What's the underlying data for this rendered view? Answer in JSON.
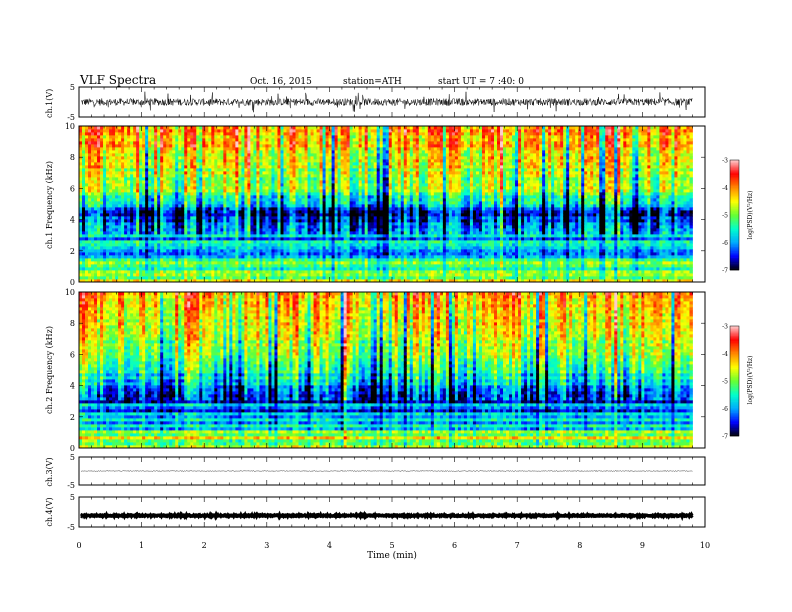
{
  "header": {
    "title": "VLF Spectra",
    "date": "Oct. 16, 2015",
    "station": "station=ATH",
    "start": "start UT = 7 :40: 0"
  },
  "panels": {
    "ch1_label": "ch.1(V)",
    "spec1_label": "ch.1 Frequency (kHz)",
    "spec2_label": "ch.2 Frequency (kHz)",
    "ch3_label": "ch.3(V)",
    "ch4_label": "ch.4(V)"
  },
  "colorbar": {
    "label": "log(PSD)(V²/Hz)",
    "ticks": [
      "-3",
      "-4",
      "-5",
      "-6",
      "-7"
    ],
    "range": [
      -7,
      -3
    ],
    "colors": [
      "#000000",
      "#0000ff",
      "#00aaff",
      "#00ffcc",
      "#66ff33",
      "#ffff00",
      "#ff8800",
      "#ff0000",
      "#ffcccc"
    ]
  },
  "chart_data": [
    {
      "type": "line",
      "panel": "ch.1 waveform",
      "ylabel": "ch.1(V)",
      "ylim": [
        -5,
        5
      ],
      "yticks": [
        "5",
        "-5"
      ],
      "xlim": [
        0,
        10
      ],
      "x_end": 9.8,
      "baseline": 0,
      "noise_amplitude": 1.2,
      "spike_amplitude": 3.5
    },
    {
      "type": "heatmap",
      "panel": "ch.1 spectrogram",
      "xlabel": "Time (min)",
      "ylabel": "Frequency (kHz)",
      "xlim": [
        0,
        10
      ],
      "x_end": 9.8,
      "ylim": [
        0,
        10
      ],
      "yticks": [
        "0",
        "2",
        "4",
        "6",
        "8",
        "10"
      ],
      "zlim": [
        -7,
        -3
      ],
      "z_profile": [
        {
          "f": 0.0,
          "z": -5.0
        },
        {
          "f": 0.5,
          "z": -4.5
        },
        {
          "f": 1.0,
          "z": -5.2
        },
        {
          "f": 1.5,
          "z": -6.1
        },
        {
          "f": 2.0,
          "z": -6.3
        },
        {
          "f": 2.5,
          "z": -6.0
        },
        {
          "f": 3.0,
          "z": -5.8
        },
        {
          "f": 3.5,
          "z": -6.0
        },
        {
          "f": 4.0,
          "z": -6.5
        },
        {
          "f": 4.5,
          "z": -6.6
        },
        {
          "f": 5.0,
          "z": -5.8
        },
        {
          "f": 6.0,
          "z": -5.0
        },
        {
          "f": 7.0,
          "z": -4.8
        },
        {
          "f": 8.0,
          "z": -4.5
        },
        {
          "f": 9.0,
          "z": -4.2
        },
        {
          "f": 10.0,
          "z": -4.1
        }
      ]
    },
    {
      "type": "heatmap",
      "panel": "ch.2 spectrogram",
      "xlabel": "Time (min)",
      "ylabel": "Frequency (kHz)",
      "xlim": [
        0,
        10
      ],
      "x_end": 9.8,
      "ylim": [
        0,
        10
      ],
      "yticks": [
        "0",
        "2",
        "4",
        "6",
        "8",
        "10"
      ],
      "zlim": [
        -7,
        -3
      ],
      "z_profile": [
        {
          "f": 0.0,
          "z": -4.9
        },
        {
          "f": 0.5,
          "z": -4.6
        },
        {
          "f": 1.0,
          "z": -5.0
        },
        {
          "f": 1.5,
          "z": -5.4
        },
        {
          "f": 2.0,
          "z": -5.6
        },
        {
          "f": 2.5,
          "z": -5.8
        },
        {
          "f": 3.0,
          "z": -5.9
        },
        {
          "f": 3.5,
          "z": -6.3
        },
        {
          "f": 4.0,
          "z": -5.8
        },
        {
          "f": 4.5,
          "z": -5.6
        },
        {
          "f": 5.0,
          "z": -5.3
        },
        {
          "f": 6.0,
          "z": -4.9
        },
        {
          "f": 7.0,
          "z": -4.6
        },
        {
          "f": 8.0,
          "z": -4.4
        },
        {
          "f": 9.0,
          "z": -4.1
        },
        {
          "f": 10.0,
          "z": -4.0
        }
      ]
    },
    {
      "type": "line",
      "panel": "ch.3 waveform",
      "ylabel": "ch.3(V)",
      "ylim": [
        -5,
        5
      ],
      "yticks": [
        "5",
        "-5"
      ],
      "xlim": [
        0,
        10
      ],
      "x_end": 9.8,
      "baseline": 0,
      "noise_amplitude": 0.15
    },
    {
      "type": "line",
      "panel": "ch.4 waveform",
      "ylabel": "ch.4(V)",
      "ylim": [
        -5,
        5
      ],
      "yticks": [
        "5",
        "-5"
      ],
      "xlim": [
        0,
        10
      ],
      "x_end": 9.8,
      "baseline": -1.2,
      "noise_amplitude": 0.2,
      "xlabel": "Time (min)",
      "xticks": [
        "0",
        "1",
        "2",
        "3",
        "4",
        "5",
        "6",
        "7",
        "8",
        "9",
        "10"
      ]
    }
  ]
}
